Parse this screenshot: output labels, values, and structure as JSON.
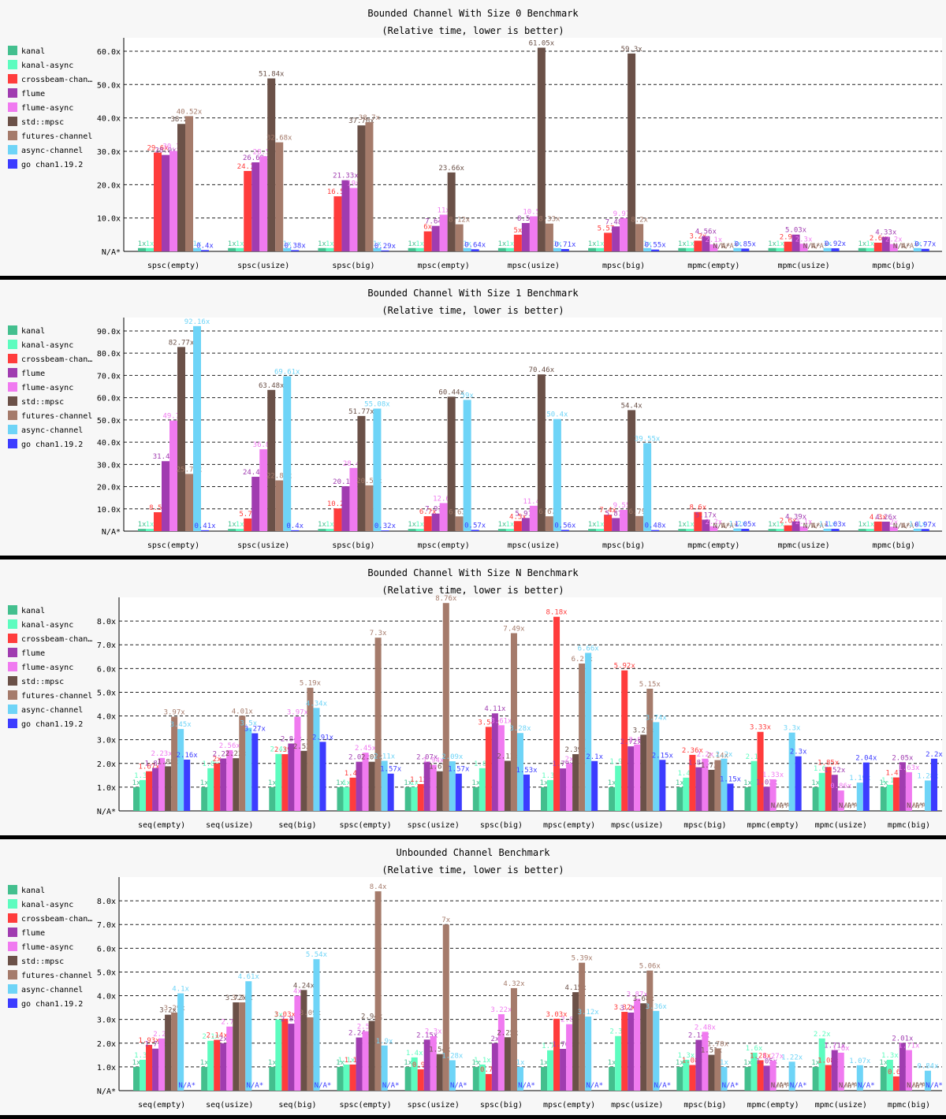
{
  "series_names": [
    "kanal",
    "kanal-async",
    "crossbeam-chan…",
    "flume",
    "flume-async",
    "std::mpsc",
    "futures-channel",
    "async-channel",
    "go chan1.19.2"
  ],
  "colors": [
    "#43bf8e",
    "#5dfcbf",
    "#ff3c3c",
    "#a03cb0",
    "#f07af0",
    "#6b5148",
    "#a57b6b",
    "#6ed4f7",
    "#3c3cff"
  ],
  "na_label": "N/A*",
  "chart_data": [
    {
      "type": "bar",
      "title": "Bounded Channel With Size 0 Benchmark",
      "subtitle": "(Relative time, lower is better)",
      "yticks": [
        "N/A*",
        "10.0x",
        "20.0x",
        "30.0x",
        "40.0x",
        "50.0x",
        "60.0x"
      ],
      "ylim": [
        0,
        64
      ],
      "grid": true,
      "legend_position": "left",
      "categories": [
        "spsc(empty)",
        "spsc(usize)",
        "spsc(big)",
        "mpsc(empty)",
        "mpsc(usize)",
        "mpsc(big)",
        "mpmc(empty)",
        "mpmc(usize)",
        "mpmc(big)"
      ],
      "series": [
        {
          "name": "kanal",
          "values": [
            1.0,
            1.0,
            1.0,
            1.0,
            1.0,
            1.0,
            1.0,
            1.0,
            1.0
          ]
        },
        {
          "name": "kanal-async",
          "values": [
            1.0,
            1.0,
            1.0,
            1.0,
            1.0,
            1.0,
            1.0,
            1.0,
            1.0
          ]
        },
        {
          "name": "crossbeam-chan…",
          "values": [
            29.6,
            24.1,
            16.5,
            6.0,
            5.0,
            5.57,
            3.2,
            2.9,
            2.6
          ]
        },
        {
          "name": "flume",
          "values": [
            28.9,
            26.69,
            21.33,
            7.64,
            8.5,
            7.48,
            4.56,
            5.03,
            4.33
          ]
        },
        {
          "name": "flume-async",
          "values": [
            30.1,
            28.5,
            19.0,
            11.0,
            10.5,
            9.97,
            2.1,
            2.3,
            2.2
          ]
        },
        {
          "name": "std::mpsc",
          "values": [
            38.2,
            51.84,
            37.76,
            23.66,
            61.05,
            59.3,
            null,
            null,
            null
          ]
        },
        {
          "name": "futures-channel",
          "values": [
            40.52,
            32.68,
            38.7,
            8.12,
            8.33,
            8.2,
            null,
            null,
            null
          ]
        },
        {
          "name": "async-channel",
          "values": [
            1.0,
            1.0,
            1.0,
            1.0,
            1.0,
            1.0,
            1.0,
            1.0,
            1.0
          ]
        },
        {
          "name": "go chan1.19.2",
          "values": [
            0.4,
            0.38,
            0.29,
            0.64,
            0.71,
            0.55,
            0.85,
            0.92,
            0.77
          ]
        }
      ]
    },
    {
      "type": "bar",
      "title": "Bounded Channel With Size 1 Benchmark",
      "subtitle": "(Relative time, lower is better)",
      "yticks": [
        "N/A*",
        "10.0x",
        "20.0x",
        "30.0x",
        "40.0x",
        "50.0x",
        "60.0x",
        "70.0x",
        "80.0x",
        "90.0x"
      ],
      "ylim": [
        0,
        96
      ],
      "grid": true,
      "legend_position": "left",
      "categories": [
        "spsc(empty)",
        "spsc(usize)",
        "spsc(big)",
        "mpsc(empty)",
        "mpsc(usize)",
        "mpsc(big)",
        "mpmc(empty)",
        "mpmc(usize)",
        "mpmc(big)"
      ],
      "series": [
        {
          "name": "kanal",
          "values": [
            1.0,
            1.0,
            1.0,
            1.0,
            1.0,
            1.0,
            1.0,
            1.0,
            1.0
          ]
        },
        {
          "name": "kanal-async",
          "values": [
            1.0,
            1.0,
            1.0,
            1.0,
            1.0,
            1.0,
            1.0,
            1.0,
            1.0
          ]
        },
        {
          "name": "crossbeam-chan…",
          "values": [
            8.5,
            5.7,
            10.2,
            6.7,
            4.5,
            7.4,
            8.6,
            2.6,
            4.3
          ]
        },
        {
          "name": "flume",
          "values": [
            31.45,
            24.43,
            20.17,
            7.91,
            5.91,
            5.87,
            5.17,
            4.39,
            4.26
          ]
        },
        {
          "name": "flume-async",
          "values": [
            49.7,
            36.8,
            28.4,
            12.6,
            11.4,
            9.55,
            2.2,
            2.1,
            2.0
          ]
        },
        {
          "name": "std::mpsc",
          "values": [
            82.77,
            63.48,
            51.77,
            60.44,
            70.46,
            54.4,
            null,
            null,
            null
          ]
        },
        {
          "name": "futures-channel",
          "values": [
            25.73,
            22.82,
            20.58,
            6.63,
            6.67,
            6.79,
            null,
            null,
            null
          ]
        },
        {
          "name": "async-channel",
          "values": [
            92.16,
            69.61,
            55.08,
            59.0,
            50.4,
            39.55,
            1.2,
            1.1,
            1.1
          ]
        },
        {
          "name": "go chan1.19.2",
          "values": [
            0.41,
            0.4,
            0.32,
            0.57,
            0.56,
            0.48,
            1.05,
            1.03,
            0.97
          ]
        }
      ]
    },
    {
      "type": "bar",
      "title": "Bounded Channel With Size N Benchmark",
      "subtitle": "(Relative time, lower is better)",
      "yticks": [
        "N/A*",
        "1.0x",
        "2.0x",
        "3.0x",
        "4.0x",
        "5.0x",
        "6.0x",
        "7.0x",
        "8.0x"
      ],
      "ylim": [
        0,
        9.0
      ],
      "grid": true,
      "legend_position": "left",
      "categories": [
        "seq(empty)",
        "seq(usize)",
        "seq(big)",
        "spsc(empty)",
        "spsc(usize)",
        "spsc(big)",
        "mpsc(empty)",
        "mpsc(usize)",
        "mpsc(big)",
        "mpmc(empty)",
        "mpmc(usize)",
        "mpmc(big)"
      ],
      "series": [
        {
          "name": "kanal",
          "values": [
            1.0,
            1.0,
            1.0,
            1.0,
            1.0,
            1.0,
            1.0,
            1.0,
            1.0,
            1.0,
            1.0,
            1.0
          ]
        },
        {
          "name": "kanal-async",
          "values": [
            1.3,
            1.8,
            2.4,
            1.0,
            1.0,
            1.8,
            1.3,
            1.9,
            1.4,
            2.1,
            1.6,
            1.1
          ]
        },
        {
          "name": "crossbeam-chan…",
          "values": [
            1.67,
            2.0,
            2.39,
            1.4,
            1.13,
            3.54,
            8.18,
            5.92,
            2.36,
            3.33,
            1.85,
            1.41
          ]
        },
        {
          "name": "flume",
          "values": [
            1.81,
            2.21,
            2.84,
            2.07,
            2.07,
            4.11,
            1.79,
            2.72,
            1.84,
            1.02,
            1.52,
            2.05
          ]
        },
        {
          "name": "flume-async",
          "values": [
            2.23,
            2.56,
            3.97,
            2.45,
            1.94,
            3.61,
            2.0,
            2.8,
            2.2,
            1.33,
            0.86,
            1.63
          ]
        },
        {
          "name": "std::mpsc",
          "values": [
            1.88,
            2.22,
            2.53,
            2.07,
            1.67,
            2.11,
            2.39,
            3.21,
            1.73,
            null,
            null,
            null
          ]
        },
        {
          "name": "futures-channel",
          "values": [
            3.97,
            4.01,
            5.19,
            7.3,
            8.76,
            7.49,
            6.21,
            5.15,
            2.14,
            null,
            null,
            null
          ]
        },
        {
          "name": "async-channel",
          "values": [
            3.45,
            3.5,
            4.34,
            2.11,
            2.09,
            3.28,
            6.66,
            3.74,
            2.2,
            3.3,
            1.19,
            1.28
          ]
        },
        {
          "name": "go chan1.19.2",
          "values": [
            2.16,
            3.27,
            2.91,
            1.57,
            1.57,
            1.53,
            2.1,
            2.15,
            1.15,
            2.3,
            2.04,
            2.2
          ]
        }
      ]
    },
    {
      "type": "bar",
      "title": "Unbounded Channel Benchmark",
      "subtitle": "(Relative time, lower is better)",
      "yticks": [
        "N/A*",
        "1.0x",
        "2.0x",
        "3.0x",
        "4.0x",
        "5.0x",
        "6.0x",
        "7.0x",
        "8.0x"
      ],
      "ylim": [
        0,
        9.0
      ],
      "grid": true,
      "legend_position": "left",
      "categories": [
        "seq(empty)",
        "seq(usize)",
        "seq(big)",
        "spsc(empty)",
        "spsc(usize)",
        "spsc(big)",
        "mpsc(empty)",
        "mpsc(usize)",
        "mpsc(big)",
        "mpmc(empty)",
        "mpmc(usize)",
        "mpmc(big)"
      ],
      "series": [
        {
          "name": "kanal",
          "values": [
            1.0,
            1.0,
            1.0,
            1.0,
            1.0,
            1.0,
            1.0,
            1.0,
            1.0,
            1.0,
            1.0,
            1.0
          ]
        },
        {
          "name": "kanal-async",
          "values": [
            1.3,
            2.1,
            3.0,
            1.1,
            1.4,
            1.1,
            1.7,
            2.3,
            1.3,
            1.6,
            2.2,
            1.3
          ]
        },
        {
          "name": "crossbeam-chan…",
          "values": [
            1.93,
            2.14,
            3.03,
            1.1,
            0.9,
            0.7,
            3.03,
            3.32,
            1.08,
            1.28,
            1.08,
            0.6
          ]
        },
        {
          "name": "flume",
          "values": [
            1.77,
            2.0,
            2.82,
            2.24,
            2.15,
            2.0,
            1.76,
            3.29,
            2.14,
            1.05,
            1.71,
            2.01
          ]
        },
        {
          "name": "flume-async",
          "values": [
            2.2,
            2.7,
            4.0,
            2.5,
            2.3,
            3.22,
            2.8,
            3.87,
            2.48,
            1.27,
            1.6,
            1.71
          ]
        },
        {
          "name": "std::mpsc",
          "values": [
            3.2,
            3.72,
            4.24,
            2.94,
            1.54,
            2.25,
            4.15,
            3.68,
            1.51,
            null,
            null,
            null
          ]
        },
        {
          "name": "futures-channel",
          "values": [
            3.29,
            3.72,
            3.09,
            8.4,
            7.0,
            4.32,
            5.39,
            5.06,
            1.78,
            null,
            null,
            null
          ]
        },
        {
          "name": "async-channel",
          "values": [
            4.1,
            4.61,
            5.54,
            1.9,
            1.28,
            1.0,
            3.12,
            3.36,
            1.0,
            1.22,
            1.07,
            0.84
          ]
        },
        {
          "name": "go chan1.19.2",
          "values": [
            null,
            null,
            null,
            null,
            null,
            null,
            null,
            null,
            null,
            null,
            null,
            null
          ]
        }
      ]
    }
  ]
}
